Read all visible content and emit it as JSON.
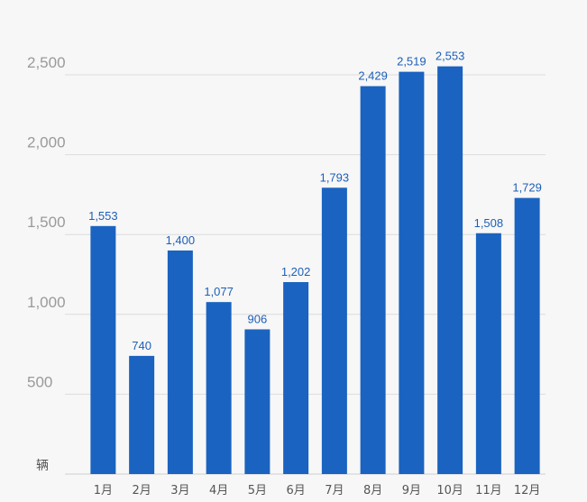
{
  "chart_data": {
    "type": "bar",
    "title": "",
    "xlabel": "",
    "ylabel": "辆",
    "categories": [
      "1月",
      "2月",
      "3月",
      "4月",
      "5月",
      "6月",
      "7月",
      "8月",
      "9月",
      "10月",
      "11月",
      "12月"
    ],
    "values": [
      1553,
      740,
      1400,
      1077,
      906,
      1202,
      1793,
      2429,
      2519,
      2553,
      1508,
      1729
    ],
    "value_labels": [
      "1,553",
      "740",
      "1,400",
      "1,077",
      "906",
      "1,202",
      "1,793",
      "2,429",
      "2,519",
      "2,553",
      "1,508",
      "1,729"
    ],
    "yticks": [
      500,
      1000,
      1500,
      2000,
      2500
    ],
    "ytick_labels": [
      "500",
      "1,000",
      "1,500",
      "2,000",
      "2,500"
    ],
    "ylim": [
      0,
      2500
    ],
    "grid": true,
    "bar_color": "#1a63c0",
    "label_color": "#1d5fb8"
  }
}
